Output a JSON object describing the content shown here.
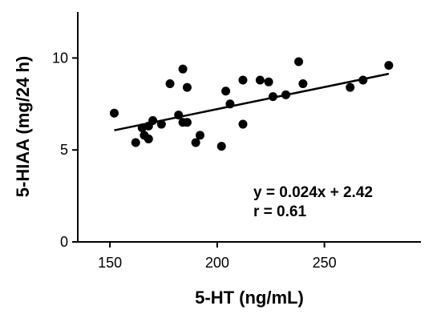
{
  "chart_data": {
    "type": "scatter",
    "title": "",
    "xlabel": "5-HT (ng/mL)",
    "ylabel": "5-HIAA (mg/24 h)",
    "xlim": [
      135,
      295
    ],
    "ylim": [
      0,
      12.5
    ],
    "x_ticks": [
      150,
      200,
      250
    ],
    "y_ticks": [
      0,
      5,
      10
    ],
    "grid": false,
    "points": [
      {
        "x": 152,
        "y": 7.0
      },
      {
        "x": 162,
        "y": 5.4
      },
      {
        "x": 165,
        "y": 6.2
      },
      {
        "x": 166,
        "y": 5.8
      },
      {
        "x": 168,
        "y": 5.6
      },
      {
        "x": 168,
        "y": 6.3
      },
      {
        "x": 170,
        "y": 6.6
      },
      {
        "x": 174,
        "y": 6.4
      },
      {
        "x": 178,
        "y": 8.6
      },
      {
        "x": 182,
        "y": 6.9
      },
      {
        "x": 184,
        "y": 9.4
      },
      {
        "x": 184,
        "y": 6.5
      },
      {
        "x": 186,
        "y": 8.4
      },
      {
        "x": 186,
        "y": 6.5
      },
      {
        "x": 190,
        "y": 5.4
      },
      {
        "x": 192,
        "y": 5.8
      },
      {
        "x": 202,
        "y": 5.2
      },
      {
        "x": 204,
        "y": 8.2
      },
      {
        "x": 206,
        "y": 7.5
      },
      {
        "x": 212,
        "y": 8.8
      },
      {
        "x": 212,
        "y": 6.4
      },
      {
        "x": 220,
        "y": 8.8
      },
      {
        "x": 224,
        "y": 8.7
      },
      {
        "x": 226,
        "y": 7.9
      },
      {
        "x": 232,
        "y": 8.0
      },
      {
        "x": 238,
        "y": 9.8
      },
      {
        "x": 240,
        "y": 8.6
      },
      {
        "x": 262,
        "y": 8.4
      },
      {
        "x": 268,
        "y": 8.8
      },
      {
        "x": 280,
        "y": 9.6
      }
    ],
    "regression": {
      "slope": 0.024,
      "intercept": 2.42,
      "x_start": 152,
      "x_end": 280
    },
    "annotations": [
      "y = 0.024x + 2.42",
      "r = 0.61"
    ]
  }
}
